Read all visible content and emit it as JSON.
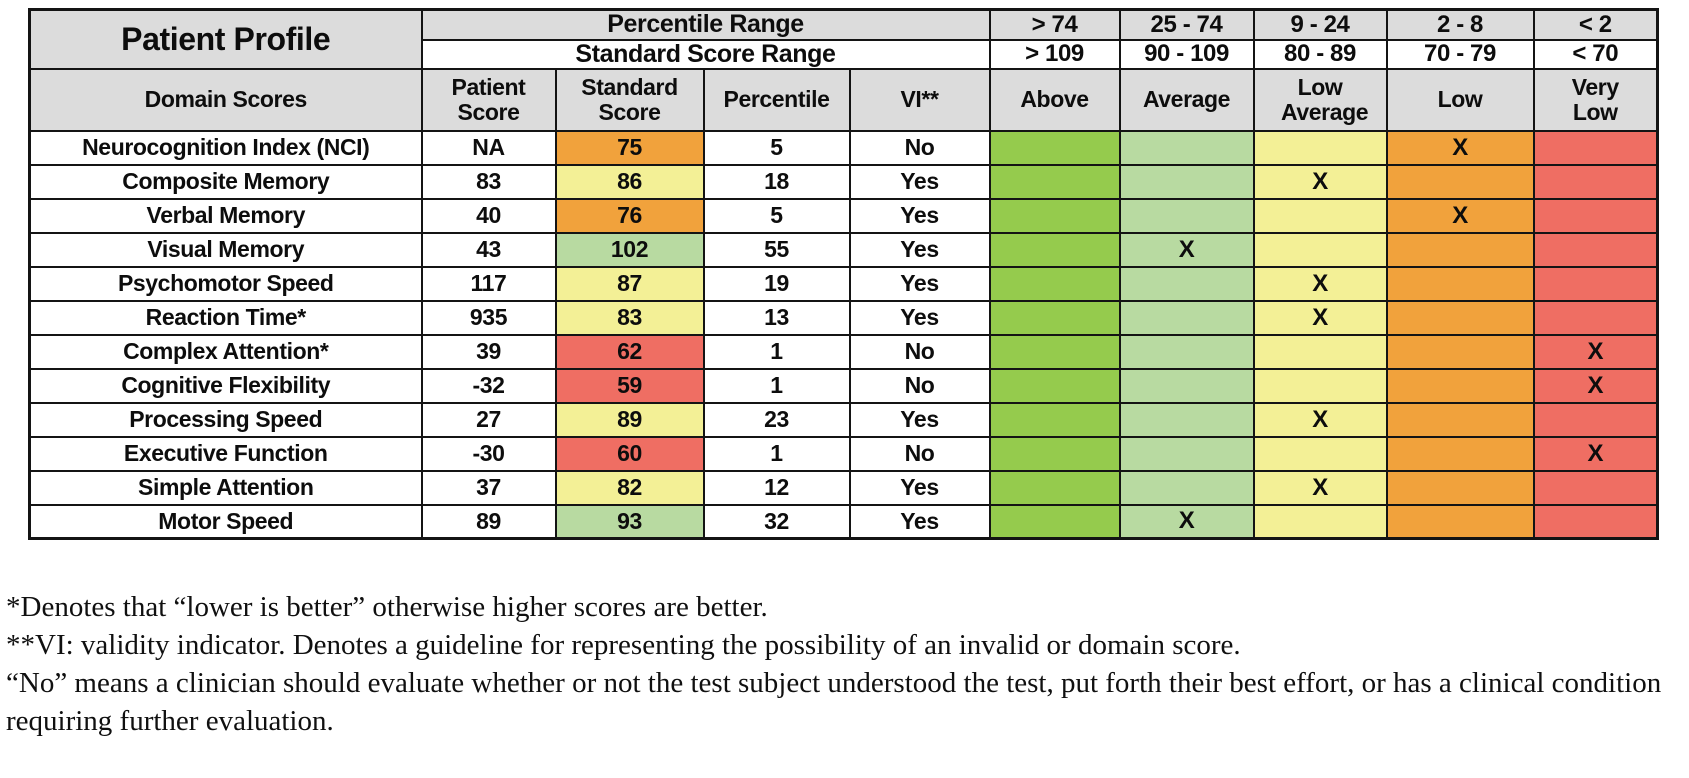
{
  "table": {
    "title": "Patient Profile",
    "header": {
      "percentile_range_label": "Percentile Range",
      "standard_score_range_label": "Standard Score Range",
      "domain_scores_label": "Domain Scores",
      "col_patient_score": "Patient Score",
      "col_standard_score": "Standard Score",
      "col_percentile": "Percentile",
      "col_vi": "VI**",
      "percentile_ranges": [
        "> 74",
        "25 - 74",
        "9 - 24",
        "2 - 8",
        "< 2"
      ],
      "standard_score_ranges": [
        "> 109",
        "90 - 109",
        "80 - 89",
        "70 - 79",
        "< 70"
      ],
      "categories": [
        "Above",
        "Average",
        "Low Average",
        "Low",
        "Very Low"
      ]
    },
    "x_mark": "X",
    "rows": [
      {
        "domain": "Neurocognition Index (NCI)",
        "patient_score": "NA",
        "standard_score": "75",
        "standard_score_color": "orange",
        "percentile": "5",
        "vi": "No",
        "category": "Low"
      },
      {
        "domain": "Composite Memory",
        "patient_score": "83",
        "standard_score": "86",
        "standard_score_color": "yellow",
        "percentile": "18",
        "vi": "Yes",
        "category": "Low Average"
      },
      {
        "domain": "Verbal Memory",
        "patient_score": "40",
        "standard_score": "76",
        "standard_score_color": "orange",
        "percentile": "5",
        "vi": "Yes",
        "category": "Low"
      },
      {
        "domain": "Visual Memory",
        "patient_score": "43",
        "standard_score": "102",
        "standard_score_color": "green_light",
        "percentile": "55",
        "vi": "Yes",
        "category": "Average"
      },
      {
        "domain": "Psychomotor Speed",
        "patient_score": "117",
        "standard_score": "87",
        "standard_score_color": "yellow",
        "percentile": "19",
        "vi": "Yes",
        "category": "Low Average"
      },
      {
        "domain": "Reaction Time*",
        "patient_score": "935",
        "standard_score": "83",
        "standard_score_color": "yellow",
        "percentile": "13",
        "vi": "Yes",
        "category": "Low Average"
      },
      {
        "domain": "Complex Attention*",
        "patient_score": "39",
        "standard_score": "62",
        "standard_score_color": "red",
        "percentile": "1",
        "vi": "No",
        "category": "Very Low"
      },
      {
        "domain": "Cognitive Flexibility",
        "patient_score": "-32",
        "standard_score": "59",
        "standard_score_color": "red",
        "percentile": "1",
        "vi": "No",
        "category": "Very Low"
      },
      {
        "domain": "Processing Speed",
        "patient_score": "27",
        "standard_score": "89",
        "standard_score_color": "yellow",
        "percentile": "23",
        "vi": "Yes",
        "category": "Low Average"
      },
      {
        "domain": "Executive Function",
        "patient_score": "-30",
        "standard_score": "60",
        "standard_score_color": "red",
        "percentile": "1",
        "vi": "No",
        "category": "Very Low"
      },
      {
        "domain": "Simple Attention",
        "patient_score": "37",
        "standard_score": "82",
        "standard_score_color": "yellow",
        "percentile": "12",
        "vi": "Yes",
        "category": "Low Average"
      },
      {
        "domain": "Motor Speed",
        "patient_score": "89",
        "standard_score": "93",
        "standard_score_color": "green_light",
        "percentile": "32",
        "vi": "Yes",
        "category": "Average"
      }
    ]
  },
  "colors": {
    "green": "#95CB4D",
    "green_light": "#B8DAA1",
    "yellow": "#F3F096",
    "orange": "#F1A23C",
    "red": "#EF6E63",
    "header_gray": "#DCDCDC",
    "border": "#141414"
  },
  "category_colors": {
    "Above": "green",
    "Average": "green_light",
    "Low Average": "yellow",
    "Low": "orange",
    "Very Low": "red"
  },
  "footnotes": [
    "*Denotes that “lower is better” otherwise higher scores are better.",
    "**VI: validity indicator. Denotes a guideline for representing the possibility of an invalid or domain score.",
    "“No” means a clinician should evaluate whether or not the test subject understood the test, put forth their best effort, or has a clinical condition requiring further evaluation."
  ]
}
